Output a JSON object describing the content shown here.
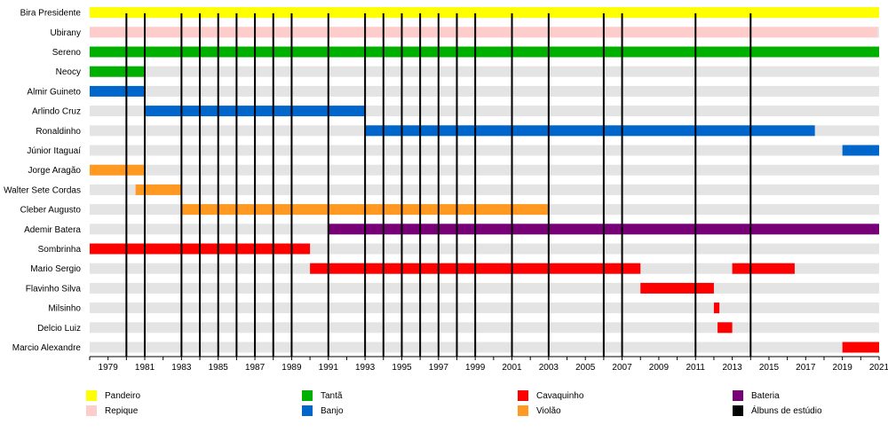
{
  "chart_data": {
    "type": "timeline",
    "x_range": [
      1978,
      2021
    ],
    "x_ticks": [
      1979,
      1981,
      1983,
      1985,
      1987,
      1989,
      1991,
      1993,
      1995,
      1997,
      1999,
      2001,
      2003,
      2005,
      2007,
      2009,
      2011,
      2013,
      2015,
      2017,
      2019,
      2021
    ],
    "album_years": [
      1980,
      1981,
      1983,
      1984,
      1985,
      1986,
      1987,
      1988,
      1989,
      1991,
      1993,
      1994,
      1995,
      1996,
      1997,
      1998,
      1999,
      2001,
      2003,
      2006,
      2007,
      2011,
      2014
    ],
    "members": [
      {
        "name": "Bira Presidente",
        "periods": [
          {
            "role": "Pandeiro",
            "start": 1978,
            "end": 2021
          }
        ]
      },
      {
        "name": "Ubirany",
        "periods": [
          {
            "role": "Repique",
            "start": 1978,
            "end": 2020.9
          }
        ]
      },
      {
        "name": "Sereno",
        "periods": [
          {
            "role": "Tantã",
            "start": 1978,
            "end": 2021
          }
        ]
      },
      {
        "name": "Neocy",
        "periods": [
          {
            "role": "Tantã",
            "start": 1978,
            "end": 1981
          }
        ]
      },
      {
        "name": "Almir Guineto",
        "periods": [
          {
            "role": "Banjo",
            "start": 1978,
            "end": 1981
          }
        ]
      },
      {
        "name": "Arlindo Cruz",
        "periods": [
          {
            "role": "Banjo",
            "start": 1981,
            "end": 1993
          }
        ]
      },
      {
        "name": "Ronaldinho",
        "periods": [
          {
            "role": "Banjo",
            "start": 1993,
            "end": 2017.5
          }
        ]
      },
      {
        "name": "Júnior Itaguaí",
        "periods": [
          {
            "role": "Banjo",
            "start": 2019,
            "end": 2021
          }
        ]
      },
      {
        "name": "Jorge Aragão",
        "periods": [
          {
            "role": "Violão",
            "start": 1978,
            "end": 1981
          }
        ]
      },
      {
        "name": "Walter Sete Cordas",
        "periods": [
          {
            "role": "Violão",
            "start": 1980.5,
            "end": 1983
          }
        ]
      },
      {
        "name": "Cleber Augusto",
        "periods": [
          {
            "role": "Violão",
            "start": 1983,
            "end": 2003
          }
        ]
      },
      {
        "name": "Ademir Batera",
        "periods": [
          {
            "role": "Bateria",
            "start": 1991,
            "end": 2021
          }
        ]
      },
      {
        "name": "Sombrinha",
        "periods": [
          {
            "role": "Cavaquinho",
            "start": 1978,
            "end": 1990
          }
        ]
      },
      {
        "name": "Mario Sergio",
        "periods": [
          {
            "role": "Cavaquinho",
            "start": 1990,
            "end": 2008
          },
          {
            "role": "Cavaquinho",
            "start": 2013,
            "end": 2016.4
          }
        ]
      },
      {
        "name": "Flavinho Silva",
        "periods": [
          {
            "role": "Cavaquinho",
            "start": 2008,
            "end": 2012
          }
        ]
      },
      {
        "name": "Milsinho",
        "periods": [
          {
            "role": "Cavaquinho",
            "start": 2012,
            "end": 2012.3
          }
        ]
      },
      {
        "name": "Delcio Luiz",
        "periods": [
          {
            "role": "Cavaquinho",
            "start": 2012.2,
            "end": 2013
          }
        ]
      },
      {
        "name": "Marcio Alexandre",
        "periods": [
          {
            "role": "Cavaquinho",
            "start": 2019,
            "end": 2021
          }
        ]
      }
    ],
    "legend": [
      {
        "label": "Pandeiro",
        "color": "#ffff00"
      },
      {
        "label": "Repique",
        "color": "#ffcccc"
      },
      {
        "label": "Tantã",
        "color": "#00b000"
      },
      {
        "label": "Banjo",
        "color": "#0066cc"
      },
      {
        "label": "Cavaquinho",
        "color": "#ff0000"
      },
      {
        "label": "Violão",
        "color": "#ff9922"
      },
      {
        "label": "Bateria",
        "color": "#770077"
      },
      {
        "label": "Álbuns de estúdio",
        "color": "#000000"
      }
    ],
    "colors": {
      "Pandeiro": "#ffff00",
      "Repique": "#ffcccc",
      "Tantã": "#00b000",
      "Banjo": "#0066cc",
      "Cavaquinho": "#ff0000",
      "Violão": "#ff9922",
      "Bateria": "#770077",
      "row_shade": "#e4e4e4",
      "album_line": "#000000"
    }
  }
}
